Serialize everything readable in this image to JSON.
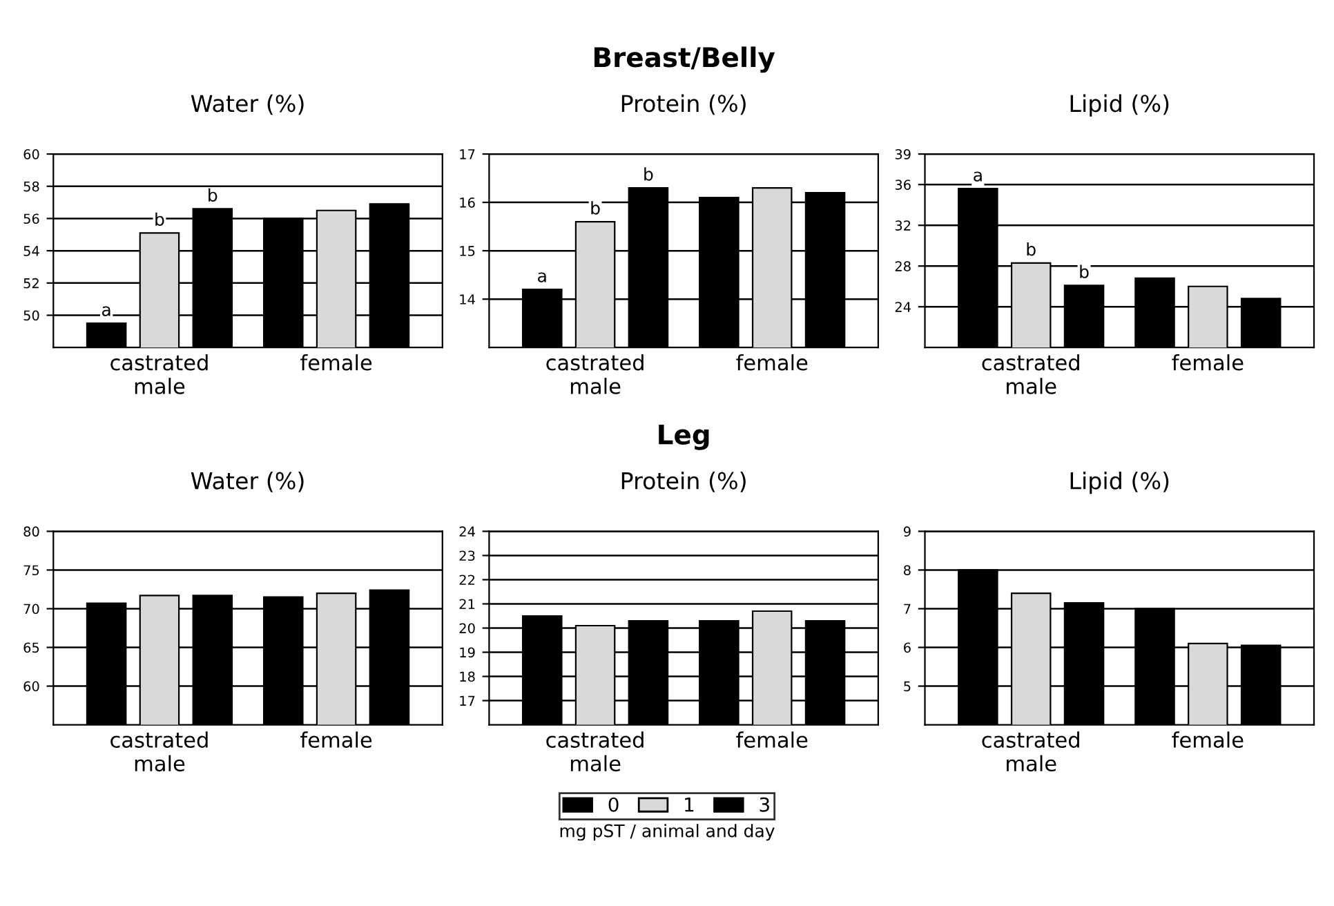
{
  "chart_data": [
    {
      "type": "bar",
      "title": "Water (%)",
      "categories": [
        "castrated\nmale",
        "female"
      ],
      "ylim": [
        48,
        60
      ],
      "yticks": [
        50,
        52,
        54,
        56,
        58,
        60
      ],
      "grid": "y",
      "legend": "bottom",
      "legend_title": "mg pST / animal and day",
      "series": [
        {
          "name": "0",
          "color": "#000000",
          "values": [
            49.5,
            56.0
          ],
          "value_labels": [
            "a",
            null
          ]
        },
        {
          "name": "1",
          "color": "#d9d9d9",
          "values": [
            55.1,
            56.5
          ],
          "value_labels": [
            "b",
            null
          ]
        },
        {
          "name": "3",
          "color": "#000000",
          "values": [
            56.6,
            56.9
          ],
          "value_labels": [
            "b",
            null
          ]
        }
      ]
    },
    {
      "type": "bar",
      "title": "Protein (%)",
      "annotations": [
        "Breast/Belly"
      ],
      "categories": [
        "castrated\nmale",
        "female"
      ],
      "ylim": [
        13,
        17
      ],
      "yticks": [
        14,
        15,
        16,
        17
      ],
      "grid": "y",
      "legend": false,
      "series": [
        {
          "name": "0",
          "color": "#000000",
          "values": [
            14.2,
            16.1
          ],
          "value_labels": [
            "a",
            null
          ]
        },
        {
          "name": "1",
          "color": "#d9d9d9",
          "values": [
            15.6,
            16.3
          ],
          "value_labels": [
            "b",
            null
          ]
        },
        {
          "name": "3",
          "color": "#000000",
          "values": [
            16.3,
            16.2
          ],
          "value_labels": [
            "b",
            null
          ]
        }
      ]
    },
    {
      "type": "bar",
      "title": "Lipid (%)",
      "categories": [
        "castrated\nmale",
        "female"
      ],
      "ylim": [
        20,
        39
      ],
      "yticks": [
        24,
        28,
        32,
        36,
        39
      ],
      "grid": "y",
      "legend": false,
      "series": [
        {
          "name": "0",
          "color": "#000000",
          "values": [
            35.6,
            26.8
          ],
          "value_labels": [
            "a",
            null
          ]
        },
        {
          "name": "1",
          "color": "#d9d9d9",
          "values": [
            28.3,
            26.0
          ],
          "value_labels": [
            "b",
            null
          ]
        },
        {
          "name": "3",
          "color": "#000000",
          "values": [
            26.1,
            24.8
          ],
          "value_labels": [
            "b",
            null
          ]
        }
      ]
    },
    {
      "type": "bar",
      "title": "Water (%)",
      "categories": [
        "castrated\nmale",
        "female"
      ],
      "ylim": [
        55,
        80
      ],
      "yticks": [
        60,
        65,
        70,
        75,
        80
      ],
      "grid": "y",
      "legend": false,
      "series": [
        {
          "name": "0",
          "color": "#000000",
          "values": [
            70.7,
            71.5
          ]
        },
        {
          "name": "1",
          "color": "#d9d9d9",
          "values": [
            71.7,
            72.0
          ]
        },
        {
          "name": "3",
          "color": "#000000",
          "values": [
            71.7,
            72.4
          ]
        }
      ]
    },
    {
      "type": "bar",
      "title": "Protein (%)",
      "annotations": [
        "Leg"
      ],
      "categories": [
        "castrated\nmale",
        "female"
      ],
      "ylim": [
        16,
        24
      ],
      "yticks": [
        17,
        18,
        19,
        20,
        21,
        22,
        23,
        24
      ],
      "grid": "y",
      "legend": false,
      "series": [
        {
          "name": "0",
          "color": "#000000",
          "values": [
            20.5,
            20.3
          ]
        },
        {
          "name": "1",
          "color": "#d9d9d9",
          "values": [
            20.1,
            20.7
          ]
        },
        {
          "name": "3",
          "color": "#000000",
          "values": [
            20.3,
            20.3
          ]
        }
      ]
    },
    {
      "type": "bar",
      "title": "Lipid (%)",
      "categories": [
        "castrated\nmale",
        "female"
      ],
      "ylim": [
        4,
        9
      ],
      "yticks": [
        5,
        6,
        7,
        8,
        9
      ],
      "grid": "y",
      "legend": false,
      "series": [
        {
          "name": "0",
          "color": "#000000",
          "values": [
            8.0,
            7.0
          ]
        },
        {
          "name": "1",
          "color": "#d9d9d9",
          "values": [
            7.4,
            6.1
          ]
        },
        {
          "name": "3",
          "color": "#000000",
          "values": [
            7.15,
            6.05
          ]
        }
      ]
    }
  ]
}
